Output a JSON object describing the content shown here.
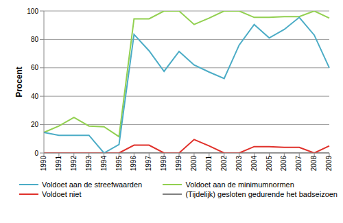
{
  "chart_data": {
    "type": "line",
    "y_label": "Procent",
    "categories": [
      "1990",
      "1991",
      "1992",
      "1993",
      "1994",
      "1995",
      "1996",
      "1997",
      "1998",
      "1999",
      "2000",
      "2001",
      "2002",
      "2003",
      "2004",
      "2005",
      "2006",
      "2007",
      "2008",
      "2009"
    ],
    "series": [
      {
        "name": "Voldoet aan de streefwaarden",
        "color": "#4bacc6",
        "values": [
          14.5,
          12.5,
          12.5,
          12.5,
          0,
          6,
          83.5,
          72,
          57.5,
          71.5,
          62,
          57,
          52.5,
          76,
          90.5,
          81,
          87,
          95.5,
          83,
          60
        ]
      },
      {
        "name": "Voldoet aan de minimumnormen",
        "color": "#92d050",
        "values": [
          14.5,
          19,
          25,
          19,
          18.5,
          11.5,
          94.5,
          94.5,
          100,
          100,
          90.5,
          95,
          100,
          100,
          95.5,
          95.5,
          96,
          96,
          100,
          95
        ]
      },
      {
        "name": "Voldoet niet",
        "color": "#e0302a",
        "values": [
          0,
          0,
          0,
          0,
          0,
          0,
          5.5,
          5.5,
          0,
          0,
          9.5,
          5,
          0,
          0,
          4.5,
          4.5,
          4,
          4,
          0,
          5
        ]
      },
      {
        "name": "(Tijdelijk) gesloten gedurende het badseizoen",
        "color": "#7f7f7f",
        "values": [
          0,
          0,
          0,
          0,
          0,
          0,
          0,
          0,
          0,
          0,
          0,
          0,
          0,
          0,
          0,
          0,
          0,
          0,
          0,
          0
        ]
      }
    ],
    "ylim": [
      0,
      100
    ],
    "yticks": [
      0,
      20,
      40,
      60,
      80,
      100
    ],
    "grid": true,
    "legend": "bottom"
  }
}
